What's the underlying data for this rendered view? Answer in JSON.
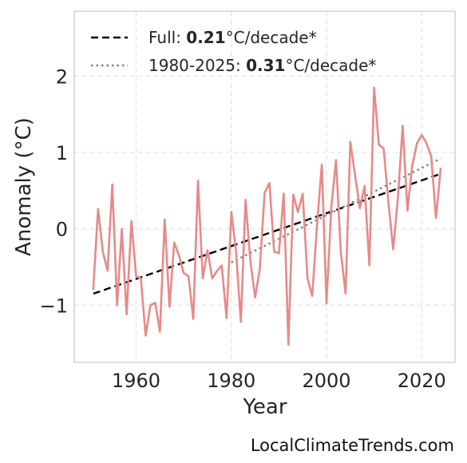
{
  "chart_data": {
    "type": "line",
    "xlabel": "Year",
    "ylabel": "Anomaly (°C)",
    "xlim": [
      1947,
      2027
    ],
    "ylim": [
      -1.75,
      2.85
    ],
    "xticks": [
      1960,
      1980,
      2000,
      2020
    ],
    "yticks": [
      -1,
      0,
      1,
      2
    ],
    "ytick_labels": [
      "−1",
      "0",
      "1",
      "2"
    ],
    "grid": true,
    "legend_position": "top-left",
    "series": [
      {
        "color": "#e8898a",
        "x": [
          1951,
          1952,
          1953,
          1954,
          1955,
          1956,
          1957,
          1958,
          1959,
          1960,
          1961,
          1962,
          1963,
          1964,
          1965,
          1966,
          1967,
          1968,
          1969,
          1970,
          1971,
          1972,
          1973,
          1974,
          1975,
          1976,
          1977,
          1978,
          1979,
          1980,
          1981,
          1982,
          1983,
          1984,
          1985,
          1986,
          1987,
          1988,
          1989,
          1990,
          1991,
          1992,
          1993,
          1994,
          1995,
          1996,
          1997,
          1998,
          1999,
          2000,
          2001,
          2002,
          2003,
          2004,
          2005,
          2006,
          2007,
          2008,
          2009,
          2010,
          2011,
          2012,
          2013,
          2014,
          2015,
          2016,
          2017,
          2018,
          2019,
          2020,
          2021,
          2022,
          2023,
          2024
        ],
        "y": [
          -0.8,
          0.26,
          -0.3,
          -0.55,
          0.58,
          -1.0,
          0.0,
          -1.12,
          0.1,
          -0.62,
          -0.65,
          -1.4,
          -1.0,
          -0.97,
          -1.35,
          0.12,
          -1.02,
          -0.18,
          -0.35,
          -0.58,
          -0.62,
          -1.18,
          0.63,
          -0.65,
          -0.28,
          -0.65,
          -0.55,
          -0.48,
          -1.17,
          0.22,
          -0.3,
          -1.22,
          0.38,
          -0.42,
          -0.9,
          -0.52,
          0.47,
          0.6,
          -0.3,
          -0.32,
          0.46,
          -1.52,
          0.45,
          0.22,
          0.46,
          -0.65,
          -0.88,
          0.05,
          0.84,
          -0.98,
          0.28,
          0.9,
          -0.3,
          -0.85,
          1.14,
          0.7,
          0.27,
          0.56,
          -0.48,
          1.85,
          1.1,
          1.05,
          0.35,
          -0.27,
          0.4,
          1.35,
          0.24,
          0.82,
          1.12,
          1.23,
          1.12,
          0.95,
          0.14,
          0.8
        ]
      }
    ],
    "trends": [
      {
        "x": [
          1951,
          2024
        ],
        "y": [
          -0.85,
          0.72
        ],
        "color": "#000000"
      },
      {
        "x": [
          1980,
          2024
        ],
        "y": [
          -0.44,
          0.92
        ],
        "color": "#808080"
      }
    ],
    "legend": [
      {
        "prefix": "Full: ",
        "value": "0.21",
        "suffix": "°C/decade*"
      },
      {
        "prefix": "1980-2025: ",
        "value": "0.31",
        "suffix": "°C/decade*"
      }
    ]
  },
  "watermark": "LocalClimateTrends.com"
}
